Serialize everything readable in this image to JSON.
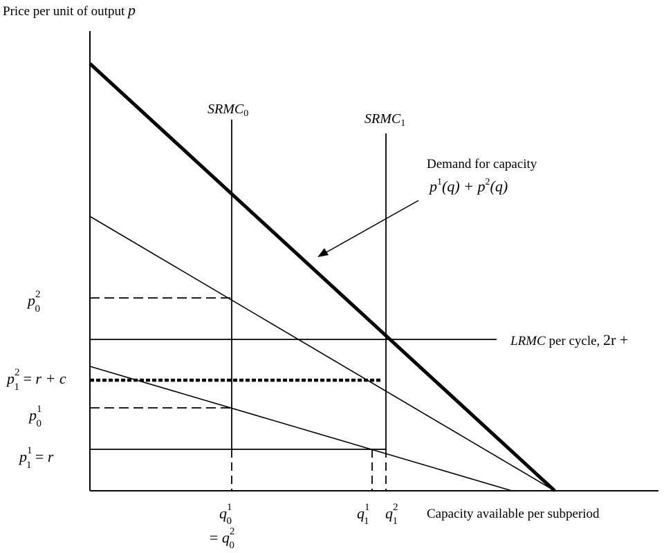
{
  "y_axis_label": {
    "text": "Price per unit of output ",
    "var": "p"
  },
  "x_axis_label": "Capacity available per subperiod",
  "srmc0": {
    "base": "SRMC",
    "sub": "0"
  },
  "srmc1": {
    "base": "SRMC",
    "sub": "1"
  },
  "demand_label": {
    "line1": "Demand for capacity",
    "p": "p",
    "sup1": "1",
    "arg1": "(q) + ",
    "p2": "p",
    "sup2": "2",
    "arg2": "(q)"
  },
  "lrmc_label": {
    "base": "LRMC",
    "rest": " per cycle, ",
    "tail": "2r +"
  },
  "y_ticks": {
    "p02": {
      "p": "p",
      "sup": "2",
      "sub": "0"
    },
    "p12": {
      "p": "p",
      "sup": "2",
      "sub": "1",
      "eq": " = ",
      "rhs": "r + c"
    },
    "p01": {
      "p": "p",
      "sup": "1",
      "sub": "0"
    },
    "p11": {
      "p": "p",
      "sup": "1",
      "sub": "1",
      "eq": " = ",
      "rhs": "r"
    }
  },
  "x_ticks": {
    "q01": {
      "q": "q",
      "sup": "1",
      "sub": "0"
    },
    "eq_q02": {
      "eq": "= ",
      "q": "q",
      "sup": "2",
      "sub": "0"
    },
    "q11": {
      "q": "q",
      "sup": "1",
      "sub": "1"
    },
    "q12": {
      "q": "q",
      "sup": "2",
      "sub": "1"
    }
  }
}
